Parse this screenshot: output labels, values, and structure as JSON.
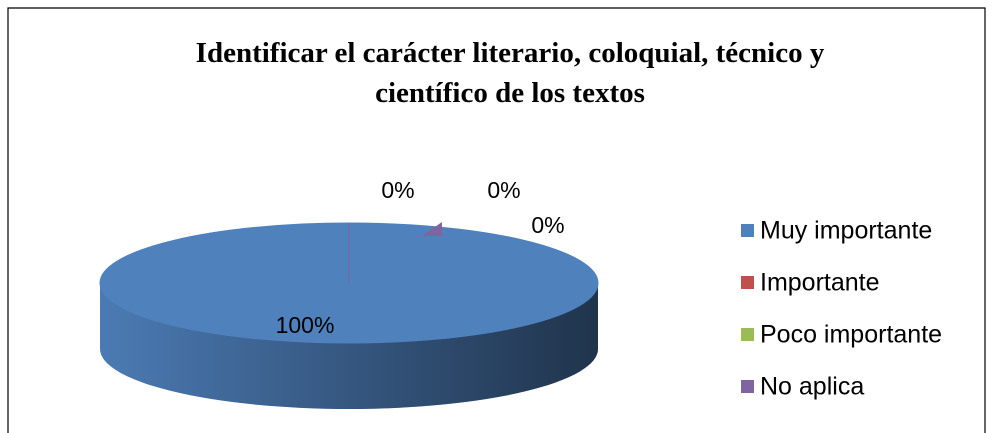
{
  "chart_data": {
    "type": "pie3d",
    "title": [
      "Identificar el carácter literario, coloquial, técnico y",
      "científico de los textos"
    ],
    "categories": [
      "Muy importante",
      "Importante",
      "Poco importante",
      "No aplica"
    ],
    "values": [
      100,
      0,
      0,
      0
    ],
    "value_labels": [
      "100%",
      "0%",
      "0%",
      "0%"
    ],
    "colors": [
      "#4f81bd",
      "#c0504d",
      "#9bbb59",
      "#8064a2"
    ],
    "legend": "right"
  }
}
